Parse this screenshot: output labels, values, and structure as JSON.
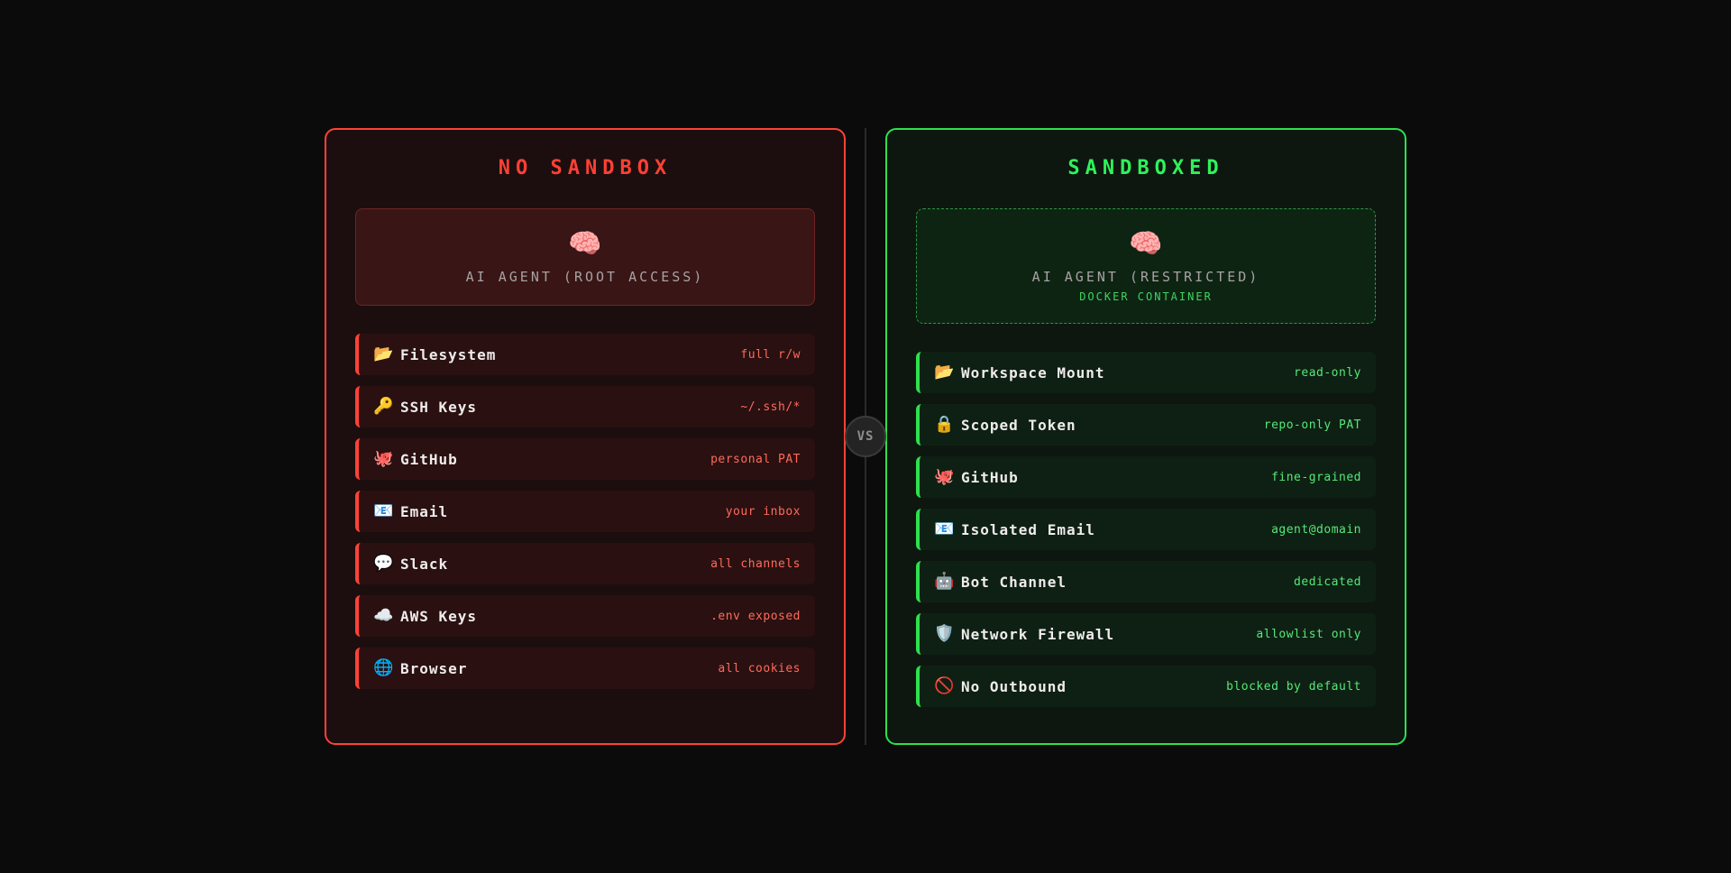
{
  "page": {
    "vs_label": "VS",
    "colors": {
      "background": "#0b0b0b",
      "red_accent": "#ff4336",
      "red_title": "#ff4034",
      "red_value_text": "#ff6a5c",
      "green_accent": "#2ee04e",
      "green_title": "#2ef25a",
      "green_value_text": "#55e878",
      "divider_gray": "#2a2a2a"
    }
  },
  "panels": {
    "left": {
      "title": "NO SANDBOX",
      "agent": {
        "emoji": "🧠",
        "label": "AI AGENT (ROOT ACCESS)"
      },
      "rows": [
        {
          "icon": "📂",
          "label": "Filesystem",
          "value": "full r/w"
        },
        {
          "icon": "🔑",
          "label": "SSH Keys",
          "value": "~/.ssh/*"
        },
        {
          "icon": "🐙",
          "label": "GitHub",
          "value": "personal PAT"
        },
        {
          "icon": "📧",
          "label": "Email",
          "value": "your inbox"
        },
        {
          "icon": "💬",
          "label": "Slack",
          "value": "all channels"
        },
        {
          "icon": "☁️",
          "label": "AWS Keys",
          "value": ".env exposed"
        },
        {
          "icon": "🌐",
          "label": "Browser",
          "value": "all cookies"
        }
      ]
    },
    "right": {
      "title": "SANDBOXED",
      "agent": {
        "emoji": "🧠",
        "label": "AI AGENT (RESTRICTED)",
        "sublabel": "DOCKER CONTAINER"
      },
      "rows": [
        {
          "icon": "📂",
          "label": "Workspace Mount",
          "value": "read-only"
        },
        {
          "icon": "🔒",
          "label": "Scoped Token",
          "value": "repo-only PAT"
        },
        {
          "icon": "🐙",
          "label": "GitHub",
          "value": "fine-grained"
        },
        {
          "icon": "📧",
          "label": "Isolated Email",
          "value": "agent@domain"
        },
        {
          "icon": "🤖",
          "label": "Bot Channel",
          "value": "dedicated"
        },
        {
          "icon": "🛡️",
          "label": "Network Firewall",
          "value": "allowlist only"
        },
        {
          "icon": "🚫",
          "label": "No Outbound",
          "value": "blocked by default"
        }
      ]
    }
  }
}
